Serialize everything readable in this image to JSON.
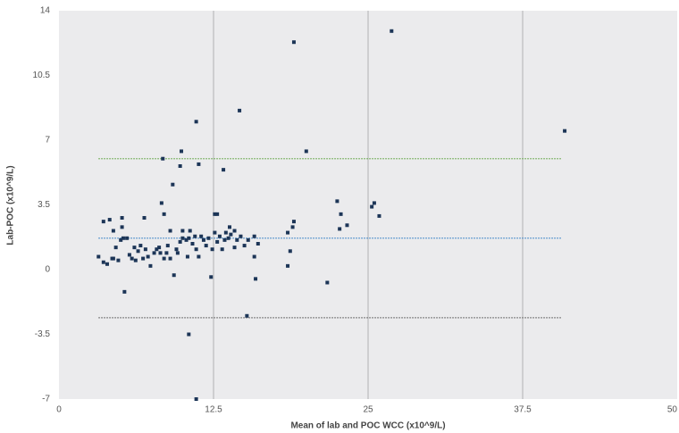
{
  "chart_data": {
    "type": "scatter",
    "xlabel": "Mean of lab and POC WCC (x10^9/L)",
    "ylabel": "Lab-POC (x10^9/L)",
    "color": "#1c3557",
    "xlim": [
      0,
      50
    ],
    "xticks": [
      0,
      12.5,
      25,
      37.5,
      50
    ],
    "ylim": [
      -7,
      14
    ],
    "yticks": [
      -7,
      -3.5,
      0,
      3.5,
      7,
      10.5,
      14
    ],
    "grid": true,
    "reference_lines": [
      {
        "value": 6.0,
        "color": "#6aa84f",
        "x_range": [
          3.2,
          40.7
        ]
      },
      {
        "value": 1.7,
        "color": "#3d85c6",
        "x_range": [
          3.2,
          40.7
        ]
      },
      {
        "value": -2.6,
        "color": "#666666",
        "x_range": [
          3.2,
          40.7
        ]
      }
    ],
    "x": [
      19.0,
      26.9,
      40.9,
      11.1,
      14.6,
      9.9,
      20.0,
      8.4,
      9.8,
      11.3,
      13.3,
      9.2,
      8.3,
      22.5,
      25.5,
      25.3,
      22.8,
      12.6,
      12.8,
      8.5,
      6.9,
      5.1,
      4.1,
      3.6,
      19.0,
      23.3,
      25.9,
      18.9,
      22.7,
      5.1,
      4.4,
      9.0,
      10.0,
      10.6,
      14.2,
      13.8,
      13.5,
      18.5,
      3.2,
      3.6,
      3.9,
      4.4,
      5.3,
      12.3,
      21.7,
      15.9,
      18.5,
      15.2,
      10.5,
      11.1,
      15.8,
      15.8,
      18.7,
      4.6,
      5.0,
      5.2,
      5.7,
      5.9,
      6.2,
      6.4,
      6.6,
      7.0,
      7.2,
      7.4,
      7.7,
      7.9,
      8.1,
      8.2,
      8.5,
      8.7,
      8.8,
      9.0,
      9.3,
      9.5,
      9.6,
      9.8,
      10.0,
      10.3,
      10.4,
      10.5,
      10.8,
      11.0,
      11.1,
      11.3,
      11.5,
      11.7,
      11.9,
      12.1,
      12.4,
      12.6,
      12.8,
      13.0,
      13.2,
      13.4,
      13.7,
      13.9,
      14.2,
      14.4,
      14.7,
      15.0,
      15.3,
      16.1,
      5.5,
      6.1,
      6.8,
      4.8,
      4.3
    ],
    "values": [
      12.3,
      12.9,
      7.5,
      8.0,
      8.6,
      6.4,
      6.4,
      6.0,
      5.6,
      5.7,
      5.4,
      4.6,
      3.6,
      3.7,
      3.6,
      3.4,
      3.0,
      3.0,
      3.0,
      3.0,
      2.8,
      2.8,
      2.7,
      2.6,
      2.6,
      2.4,
      2.9,
      2.3,
      2.2,
      2.3,
      2.1,
      2.1,
      2.1,
      2.1,
      2.1,
      2.3,
      2.0,
      2.0,
      0.7,
      0.4,
      0.3,
      0.6,
      -1.2,
      -0.4,
      -0.7,
      -0.5,
      0.2,
      -2.5,
      -3.5,
      -7.0,
      0.7,
      1.8,
      1.0,
      1.2,
      1.6,
      1.7,
      0.8,
      0.6,
      0.5,
      1.0,
      1.3,
      1.1,
      0.7,
      0.2,
      0.9,
      1.1,
      1.2,
      0.9,
      0.6,
      0.9,
      1.3,
      0.6,
      -0.3,
      1.1,
      0.9,
      1.5,
      1.7,
      1.6,
      0.7,
      1.7,
      1.4,
      1.8,
      1.1,
      0.7,
      1.8,
      1.6,
      1.3,
      1.7,
      1.1,
      2.0,
      1.5,
      1.8,
      1.1,
      1.6,
      1.7,
      1.9,
      1.2,
      1.6,
      1.8,
      1.3,
      1.6,
      1.4,
      1.7,
      1.2,
      0.6,
      0.5,
      0.6
    ]
  }
}
